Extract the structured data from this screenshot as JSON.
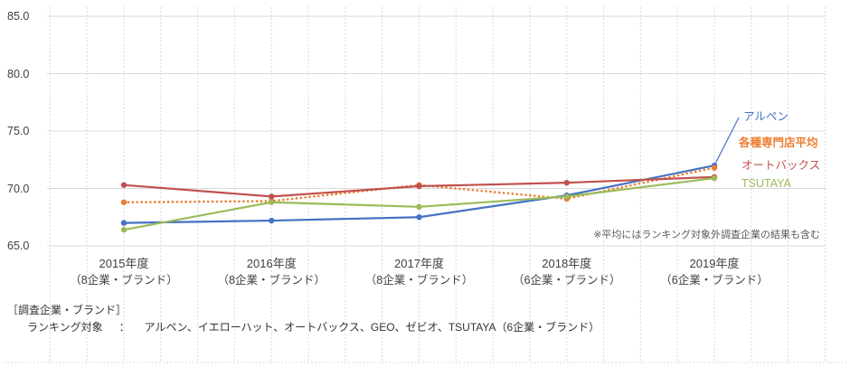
{
  "chart_data": {
    "type": "line",
    "title": "",
    "categories": [
      "2015年度",
      "2016年度",
      "2017年度",
      "2018年度",
      "2019年度"
    ],
    "category_sublabels": [
      "（8企業・ブランド）",
      "（8企業・ブランド）",
      "（8企業・ブランド）",
      "（6企業・ブランド）",
      "（6企業・ブランド）"
    ],
    "ylim": [
      65.0,
      85.0
    ],
    "yticks": [
      65.0,
      70.0,
      75.0,
      80.0,
      85.0
    ],
    "grid": "horizontal-solid, vertical-dotted",
    "legend_position": "right",
    "series": [
      {
        "name": "アルペン",
        "values": [
          67.0,
          67.2,
          67.5,
          69.4,
          72.0
        ],
        "color": "#4472C4",
        "style": "solid"
      },
      {
        "name": "各種専門店平均",
        "values": [
          68.8,
          68.9,
          70.3,
          69.1,
          71.8
        ],
        "color": "#ED7D31",
        "style": "dotted"
      },
      {
        "name": "オートバックス",
        "values": [
          70.3,
          69.3,
          70.2,
          70.5,
          71.0
        ],
        "color": "#C0504D",
        "style": "solid"
      },
      {
        "name": "TSUTAYA",
        "values": [
          66.4,
          68.8,
          68.4,
          69.3,
          70.9
        ],
        "color": "#9BBB59",
        "style": "solid"
      }
    ],
    "annotation": "※平均にはランキング対象外調査企業の結果も含む"
  },
  "footer": {
    "line1": "［調査企業・ブランド］",
    "line2_label": "ランキング対象",
    "line2_sep": "：",
    "line2_value": "アルペン、イエローハット、オートバックス、GEO、ゼビオ、TSUTAYA（6企業・ブランド）"
  },
  "colors": {
    "grid_solid": "#d9d9d9",
    "grid_dotted": "#cccccc",
    "axis_text": "#404040",
    "annotation_text": "#595959"
  }
}
